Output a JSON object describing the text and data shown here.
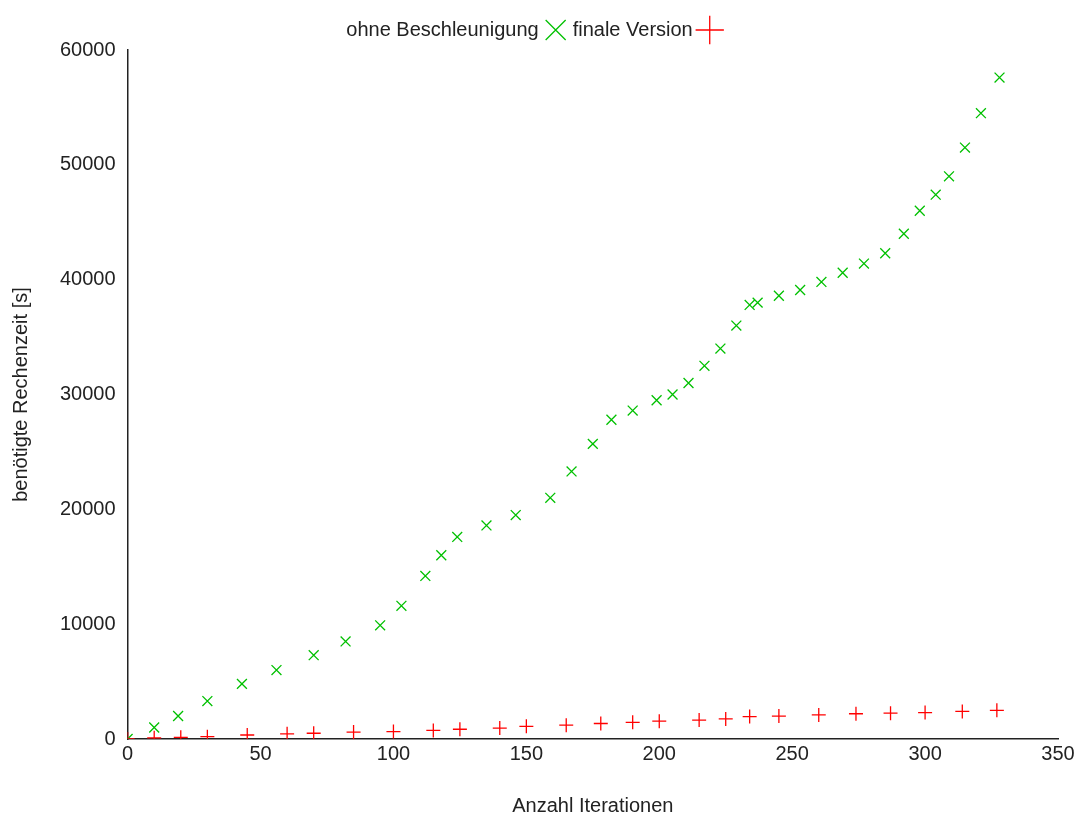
{
  "chart_data": {
    "type": "scatter",
    "xlabel": "Anzahl Iterationen",
    "ylabel": "benötigte Rechenzeit [s]",
    "xlim": [
      0,
      350
    ],
    "xticks": [
      0,
      50,
      100,
      150,
      200,
      250,
      300,
      350
    ],
    "ylim": [
      0,
      60000
    ],
    "yticks": [
      0,
      10000,
      20000,
      30000,
      40000,
      50000,
      60000
    ],
    "grid": false,
    "legend": "top",
    "marker": "cross",
    "series": [
      {
        "name": "finale Version",
        "color": "#ff0000",
        "x": [
          0,
          10,
          20,
          30,
          45,
          60,
          70,
          85,
          100,
          115,
          125,
          140,
          150,
          165,
          178,
          190,
          200,
          215,
          225,
          234,
          245,
          260,
          274,
          287,
          300,
          314,
          327
        ],
        "values": [
          0,
          100,
          150,
          200,
          350,
          450,
          500,
          600,
          650,
          750,
          850,
          950,
          1100,
          1200,
          1350,
          1450,
          1550,
          1650,
          1750,
          1950,
          2000,
          2100,
          2200,
          2250,
          2300,
          2400,
          2500
        ]
      },
      {
        "name": "ohne Beschleunigung",
        "color": "#00c000",
        "x": [
          0,
          10,
          19,
          30,
          43,
          56,
          70,
          82,
          95,
          103,
          112,
          118,
          124,
          135,
          146,
          159,
          167,
          175,
          182,
          190,
          199,
          205,
          211,
          217,
          223,
          229,
          234,
          237,
          245,
          253,
          261,
          269,
          277,
          285,
          292,
          298,
          304,
          309,
          315,
          321,
          328
        ],
        "values": [
          0,
          1000,
          2000,
          3300,
          4800,
          6000,
          7300,
          8500,
          9900,
          11600,
          14200,
          16000,
          17600,
          18600,
          19500,
          21000,
          23300,
          25700,
          27800,
          28600,
          29500,
          30000,
          31000,
          32500,
          34000,
          36000,
          37800,
          38000,
          38600,
          39100,
          39800,
          40600,
          41400,
          42300,
          44000,
          46000,
          47400,
          49000,
          51500,
          54500,
          57600
        ]
      }
    ]
  }
}
